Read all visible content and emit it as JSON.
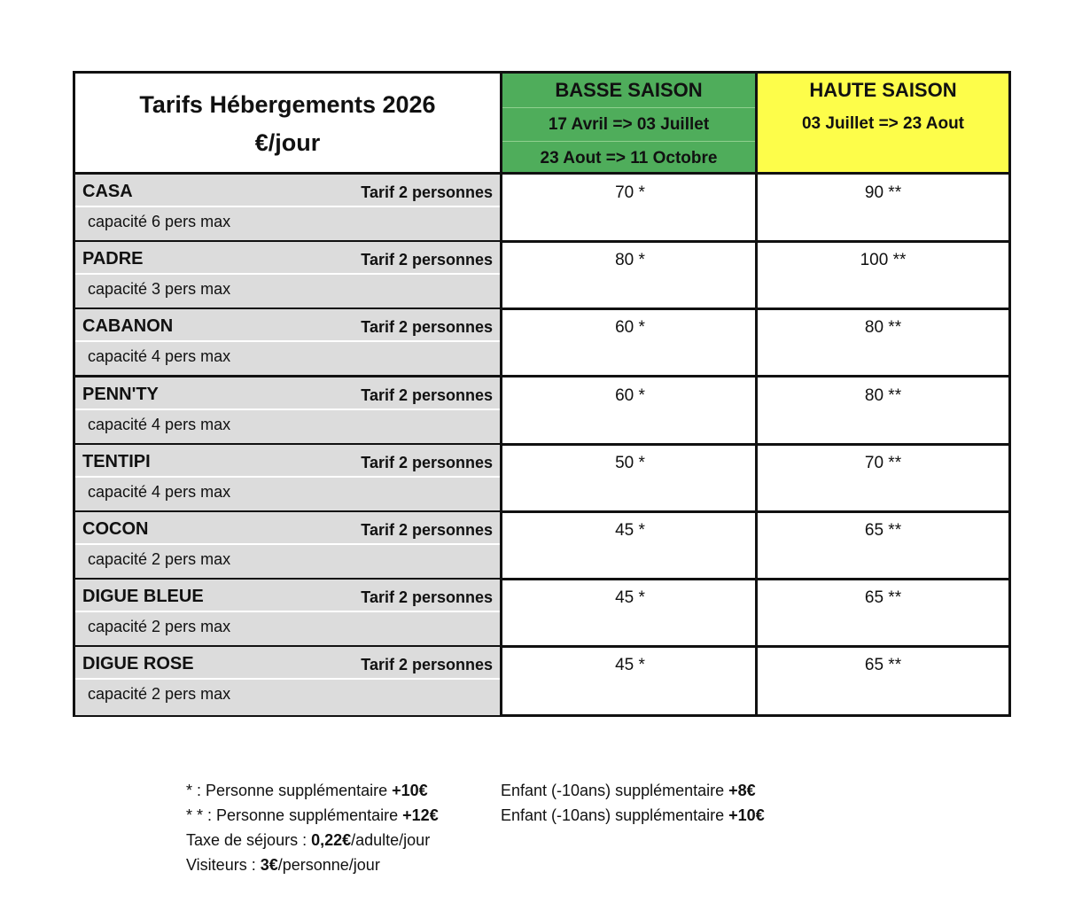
{
  "header": {
    "title_line1": "Tarifs Hébergements 2026",
    "title_line2": "€/jour",
    "basse": {
      "name": "BASSE SAISON",
      "date1": "17 Avril  => 03 Juillet",
      "date2": "23 Aout  => 11 Octobre",
      "color": "#4fad5b"
    },
    "haute": {
      "name": "HAUTE SAISON",
      "date1": "03 Juillet  => 23 Aout",
      "color": "#fdfd4a"
    }
  },
  "rows": [
    {
      "name": "CASA",
      "tarif": "Tarif 2 personnes",
      "capacity": "capacité 6 pers max",
      "basse": "70 *",
      "haute": "90 **"
    },
    {
      "name": "PADRE",
      "tarif": "Tarif 2 personnes",
      "capacity": "capacité 3 pers max",
      "basse": "80 *",
      "haute": "100 **"
    },
    {
      "name": "CABANON",
      "tarif": "Tarif 2 personnes",
      "capacity": "capacité 4 pers max",
      "basse": "60 *",
      "haute": "80 **"
    },
    {
      "name": "PENN'TY",
      "tarif": "Tarif 2 personnes",
      "capacity": "capacité 4 pers max",
      "basse": "60 *",
      "haute": "80 **"
    },
    {
      "name": "TENTIPI",
      "tarif": "Tarif 2 personnes",
      "capacity": "capacité 4 pers max",
      "basse": "50 *",
      "haute": "70 **"
    },
    {
      "name": "COCON",
      "tarif": "Tarif 2 personnes",
      "capacity": "capacité 2 pers max",
      "basse": "45 *",
      "haute": "65 **"
    },
    {
      "name": "DIGUE BLEUE",
      "tarif": "Tarif 2 personnes",
      "capacity": "capacité 2 pers max",
      "basse": "45 *",
      "haute": "65 **"
    },
    {
      "name": "DIGUE ROSE",
      "tarif": "Tarif 2 personnes",
      "capacity": "capacité 2 pers max",
      "basse": "45 *",
      "haute": "65 **"
    }
  ],
  "notes": {
    "n1a": "*  : Personne supplémentaire ",
    "n1b": "+10€",
    "n2a": "* * : Personne supplémentaire  ",
    "n2b": "+12€",
    "n3a": "Taxe de séjours : ",
    "n3b": "0,22€",
    "n3c": "/adulte/jour",
    "n4a": "Visiteurs : ",
    "n4b": "3€",
    "n4c": "/personne/jour",
    "e1a": "Enfant (-10ans) supplémentaire ",
    "e1b": "+8€",
    "e2a": "Enfant (-10ans) supplémentaire ",
    "e2b": "+10€"
  }
}
